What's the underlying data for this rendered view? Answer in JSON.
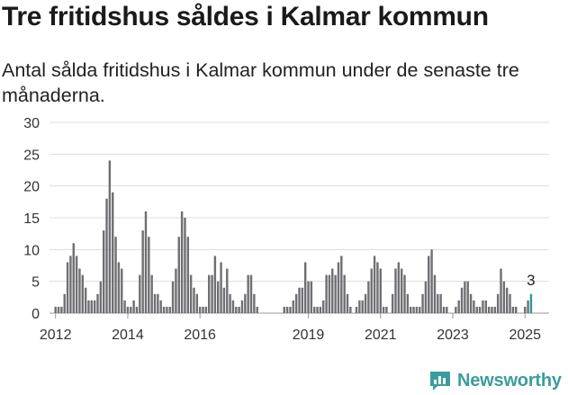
{
  "title": "Tre fritidshus såldes i Kalmar kommun",
  "subtitle": "Antal sålda fritidshus i Kalmar kommun under de senaste tre månaderna.",
  "brand": {
    "name": "Newsworthy",
    "icon": "newsworthy-logo-icon"
  },
  "colors": {
    "bar": "#6f6f73",
    "highlight": "#2a9a96",
    "grid": "#dcdcdc",
    "text": "#333333"
  },
  "chart_data": {
    "type": "bar",
    "ylim": [
      0,
      30
    ],
    "yticks": [
      0,
      5,
      10,
      15,
      20,
      25,
      30
    ],
    "xtick_labels": [
      "2012",
      "2014",
      "2016",
      "2019",
      "2021",
      "2023",
      "2025"
    ],
    "grid": true,
    "annotation": "3",
    "series": [
      {
        "segment": 1,
        "start": "2012-01",
        "values": [
          1,
          1,
          1,
          3,
          8,
          9,
          11,
          9,
          7,
          6,
          4,
          2,
          2,
          2,
          3,
          5,
          13,
          18,
          24,
          19,
          12,
          8,
          7,
          2,
          1,
          1,
          2,
          1,
          6,
          13,
          16,
          12,
          6,
          3,
          3,
          2,
          1,
          1,
          1,
          5,
          7,
          12,
          16,
          15,
          12,
          6,
          4,
          3,
          1,
          1,
          1,
          6,
          6,
          9,
          5,
          8,
          4,
          7,
          3,
          2,
          1
        ]
      },
      {
        "segment": 2,
        "start": "2017-02",
        "values": [
          1,
          2,
          3,
          6,
          6,
          3,
          1
        ]
      },
      {
        "segment": 3,
        "start": "2018-05",
        "values": [
          1,
          1,
          1,
          2,
          3,
          4,
          4,
          8,
          5,
          5,
          1,
          1,
          1,
          2,
          6,
          6,
          7,
          6,
          8,
          9,
          6,
          3,
          1
        ]
      },
      {
        "segment": 4,
        "start": "2020-05",
        "values": [
          1,
          2,
          2,
          3,
          5,
          7,
          9,
          8,
          7,
          1,
          1
        ]
      },
      {
        "segment": 5,
        "start": "2021-05",
        "values": [
          3,
          7,
          8,
          7,
          6,
          3,
          1,
          1,
          1,
          1,
          3,
          5,
          9,
          10,
          6,
          3,
          3,
          1,
          1
        ]
      },
      {
        "segment": 6,
        "start": "2023-02",
        "values": [
          1,
          2,
          4,
          5,
          5,
          3,
          2,
          1,
          1,
          2,
          2,
          1,
          1,
          1,
          3,
          7,
          5,
          4,
          3,
          1,
          1
        ]
      },
      {
        "segment": 7,
        "start": "2025-01",
        "values": [
          1,
          2,
          3
        ]
      }
    ]
  }
}
